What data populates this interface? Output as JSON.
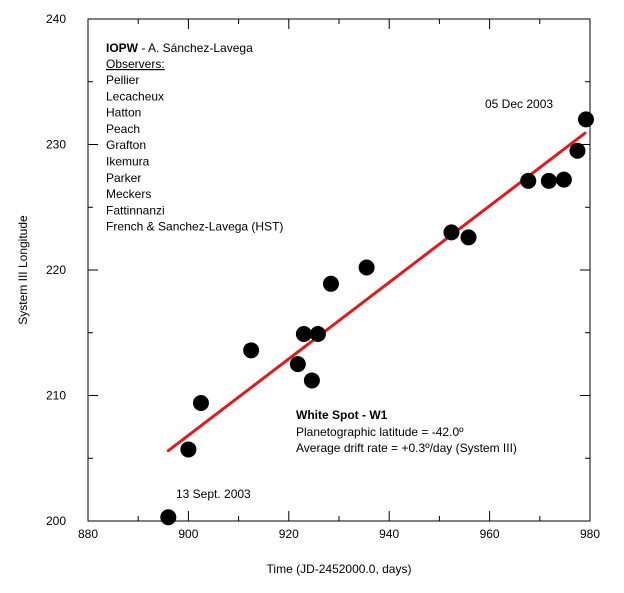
{
  "chart_data": {
    "type": "scatter",
    "xlabel": "Time (JD-2452000.0, days)",
    "ylabel": "System III Longitude",
    "xlim": [
      880,
      980
    ],
    "ylim": [
      200,
      240
    ],
    "x_ticks": [
      "880",
      "900",
      "920",
      "940",
      "960",
      "980"
    ],
    "y_ticks": [
      "200",
      "210",
      "220",
      "230",
      "240"
    ],
    "grid": false,
    "points": [
      {
        "x": 896.0,
        "y": 200.3
      },
      {
        "x": 900.0,
        "y": 205.7
      },
      {
        "x": 902.5,
        "y": 209.4
      },
      {
        "x": 912.5,
        "y": 213.6
      },
      {
        "x": 921.8,
        "y": 212.5
      },
      {
        "x": 923.0,
        "y": 214.9
      },
      {
        "x": 924.6,
        "y": 211.2
      },
      {
        "x": 925.8,
        "y": 214.9
      },
      {
        "x": 928.4,
        "y": 218.9
      },
      {
        "x": 935.5,
        "y": 220.2
      },
      {
        "x": 952.4,
        "y": 223.0
      },
      {
        "x": 955.8,
        "y": 222.6
      },
      {
        "x": 967.7,
        "y": 227.1
      },
      {
        "x": 971.8,
        "y": 227.1
      },
      {
        "x": 974.8,
        "y": 227.2
      },
      {
        "x": 977.5,
        "y": 229.5
      },
      {
        "x": 979.2,
        "y": 232.0
      }
    ],
    "fit_line": {
      "x": [
        896.0,
        979.0
      ],
      "y": [
        205.6,
        230.9
      ],
      "color": "#e31a1c"
    },
    "marker_color": "#000000",
    "annotations": {
      "credit_bold": "IOPW",
      "credit_rest": " - A. Sánchez-Lavega",
      "observers_heading": "Observers:",
      "observers": [
        "Pellier",
        "Lecacheux",
        "Hatton",
        "Peach",
        "Grafton",
        "Ikemura",
        "Parker",
        "Meckers",
        "Fattinnanzi",
        "French & Sanchez-Lavega (HST)"
      ],
      "date_end": "05 Dec 2003",
      "date_start": "13 Sept. 2003",
      "spot_title": "White Spot - W1",
      "latitude_text": "Planetographic latitude = -42.0º",
      "drift_text": "Average drift rate = +0.3º/day (System III)"
    }
  }
}
